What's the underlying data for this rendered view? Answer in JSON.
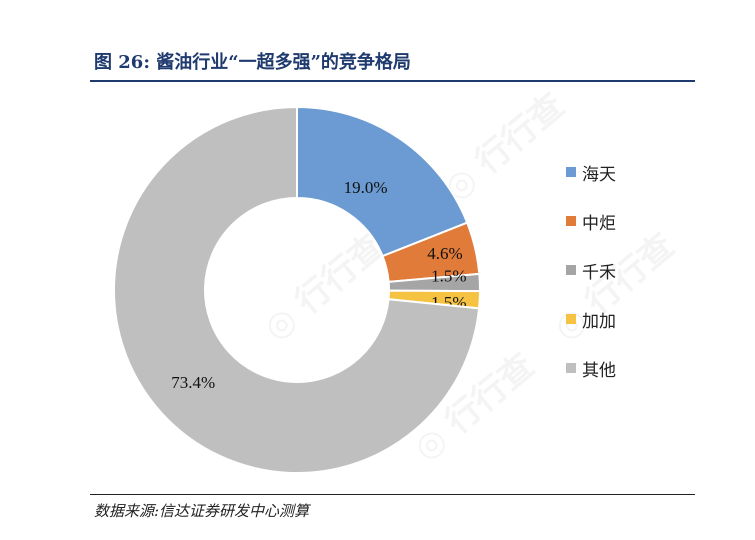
{
  "title": "图 26:  酱油行业“一超多强”的竞争格局",
  "source": "数据来源:信达证券研发中心测算",
  "colors": {
    "title": "#1f3a6e",
    "haitian": "#6b9bd2",
    "zhongju": "#e07b39",
    "qianhe": "#a5a5a5",
    "jiajia": "#f5c242",
    "others": "#bfbfbf"
  },
  "chart_data": {
    "type": "pie",
    "donut": true,
    "categories": [
      "海天",
      "中炬",
      "千禾",
      "加加",
      "其他"
    ],
    "values": [
      19.0,
      4.6,
      1.5,
      1.5,
      73.4
    ],
    "data_labels": [
      "19.0%",
      "4.6%",
      "1.5%",
      "1.5%",
      "73.4%"
    ],
    "legend_position": "right"
  }
}
